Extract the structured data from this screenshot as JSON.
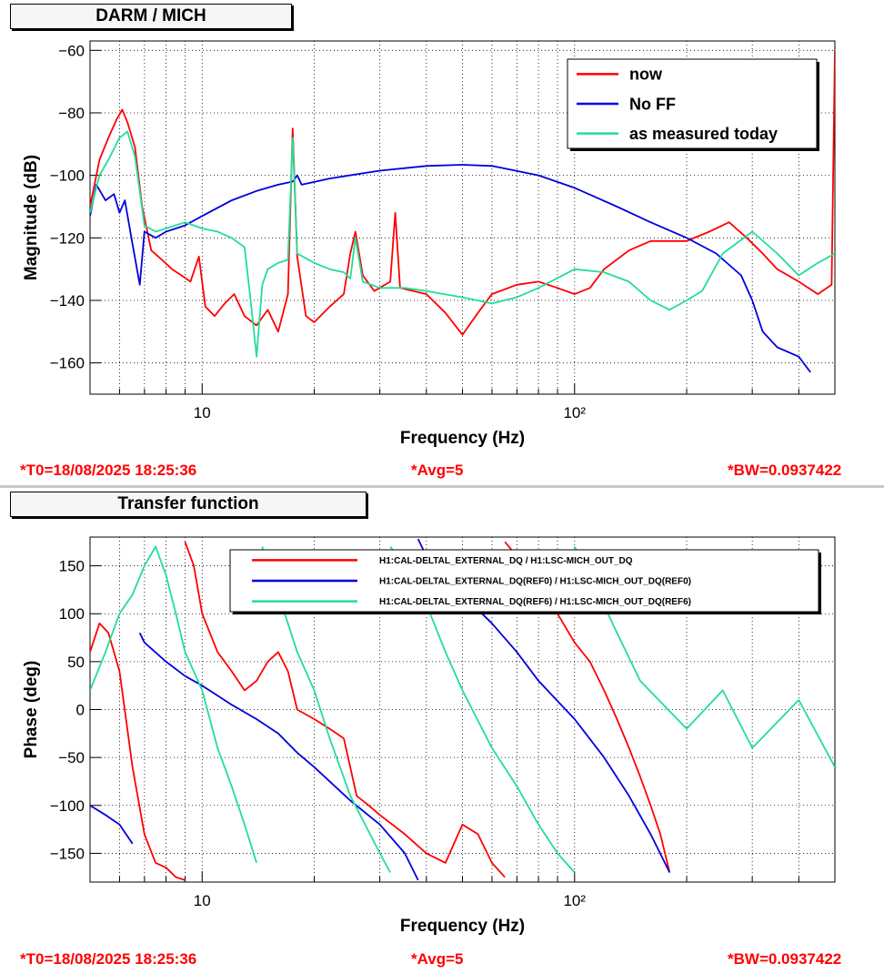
{
  "top": {
    "title": "DARM / MICH",
    "footer": {
      "t0": "*T0=18/08/2025 18:25:36",
      "avg": "*Avg=5",
      "bw": "*BW=0.0937422"
    }
  },
  "bottom": {
    "title": "Transfer function",
    "footer": {
      "t0": "*T0=18/08/2025 18:25:36",
      "avg": "*Avg=5",
      "bw": "*BW=0.0937422"
    }
  },
  "colors": {
    "red": "#ff0000",
    "blue": "#0000dd",
    "teal": "#22dd99"
  },
  "chart_data": [
    {
      "type": "line",
      "xlabel": "Frequency (Hz)",
      "ylabel": "Magnitude (dB)",
      "xscale": "log",
      "xlim": [
        5,
        500
      ],
      "ylim": [
        -170,
        -57
      ],
      "xticks": [
        10,
        100
      ],
      "xtick_labels": [
        "10",
        "10²"
      ],
      "yticks": [
        -60,
        -80,
        -100,
        -120,
        -140,
        -160
      ],
      "grid": true,
      "legend_position": "top-right",
      "series": [
        {
          "name": "now",
          "color": "#ff0000",
          "width": 1.8,
          "points": [
            [
              5,
              -110
            ],
            [
              5.3,
              -95
            ],
            [
              5.6,
              -88
            ],
            [
              5.9,
              -82
            ],
            [
              6.1,
              -79
            ],
            [
              6.3,
              -83
            ],
            [
              6.6,
              -91
            ],
            [
              6.9,
              -110
            ],
            [
              7.3,
              -124
            ],
            [
              7.8,
              -127
            ],
            [
              8.3,
              -130
            ],
            [
              8.8,
              -132
            ],
            [
              9.3,
              -134
            ],
            [
              9.8,
              -126
            ],
            [
              10.2,
              -142
            ],
            [
              10.8,
              -145
            ],
            [
              11.5,
              -141
            ],
            [
              12.2,
              -138
            ],
            [
              13,
              -145
            ],
            [
              14,
              -148
            ],
            [
              15,
              -143
            ],
            [
              16,
              -150
            ],
            [
              17,
              -138
            ],
            [
              17.5,
              -85
            ],
            [
              18,
              -126
            ],
            [
              19,
              -145
            ],
            [
              20,
              -147
            ],
            [
              22,
              -142
            ],
            [
              24,
              -138
            ],
            [
              25,
              -125
            ],
            [
              25.8,
              -118
            ],
            [
              27,
              -132
            ],
            [
              29,
              -137
            ],
            [
              32,
              -134
            ],
            [
              33,
              -112
            ],
            [
              34,
              -136
            ],
            [
              40,
              -138
            ],
            [
              45,
              -144
            ],
            [
              50,
              -151
            ],
            [
              55,
              -144
            ],
            [
              60,
              -138
            ],
            [
              70,
              -135
            ],
            [
              80,
              -134
            ],
            [
              90,
              -136
            ],
            [
              100,
              -138
            ],
            [
              110,
              -136
            ],
            [
              120,
              -130
            ],
            [
              140,
              -124
            ],
            [
              160,
              -121
            ],
            [
              180,
              -121
            ],
            [
              200,
              -121
            ],
            [
              230,
              -118
            ],
            [
              260,
              -115
            ],
            [
              290,
              -120
            ],
            [
              320,
              -125
            ],
            [
              350,
              -130
            ],
            [
              400,
              -134
            ],
            [
              450,
              -138
            ],
            [
              490,
              -135
            ],
            [
              500,
              -60
            ]
          ]
        },
        {
          "name": "No FF",
          "color": "#0000dd",
          "width": 1.8,
          "points": [
            [
              5,
              -113
            ],
            [
              5.2,
              -103
            ],
            [
              5.5,
              -108
            ],
            [
              5.8,
              -106
            ],
            [
              6,
              -112
            ],
            [
              6.2,
              -108
            ],
            [
              6.5,
              -122
            ],
            [
              6.8,
              -135
            ],
            [
              7,
              -118
            ],
            [
              7.5,
              -120
            ],
            [
              8,
              -118
            ],
            [
              9,
              -116
            ],
            [
              10,
              -113
            ],
            [
              12,
              -108
            ],
            [
              14,
              -105
            ],
            [
              16,
              -103
            ],
            [
              17.5,
              -102
            ],
            [
              18,
              -100
            ],
            [
              18.5,
              -103
            ],
            [
              22,
              -101
            ],
            [
              30,
              -98.5
            ],
            [
              40,
              -97
            ],
            [
              50,
              -96.6
            ],
            [
              60,
              -97
            ],
            [
              80,
              -100
            ],
            [
              100,
              -104
            ],
            [
              130,
              -110
            ],
            [
              160,
              -115
            ],
            [
              200,
              -120
            ],
            [
              240,
              -125
            ],
            [
              280,
              -132
            ],
            [
              300,
              -140
            ],
            [
              320,
              -150
            ],
            [
              350,
              -155
            ],
            [
              400,
              -158
            ],
            [
              430,
              -163
            ]
          ]
        },
        {
          "name": "as measured today",
          "color": "#22dd99",
          "width": 1.8,
          "points": [
            [
              5,
              -112
            ],
            [
              5.3,
              -100
            ],
            [
              5.6,
              -95
            ],
            [
              6,
              -88
            ],
            [
              6.3,
              -86
            ],
            [
              6.6,
              -94
            ],
            [
              7,
              -116
            ],
            [
              7.5,
              -118
            ],
            [
              8,
              -117
            ],
            [
              9,
              -115
            ],
            [
              10,
              -117
            ],
            [
              11,
              -118
            ],
            [
              12,
              -120
            ],
            [
              13,
              -123
            ],
            [
              13.5,
              -140
            ],
            [
              14,
              -158
            ],
            [
              14.5,
              -135
            ],
            [
              15,
              -130
            ],
            [
              16,
              -128
            ],
            [
              17,
              -127
            ],
            [
              17.5,
              -88
            ],
            [
              18,
              -125
            ],
            [
              20,
              -128
            ],
            [
              22,
              -130
            ],
            [
              24,
              -131
            ],
            [
              25,
              -133
            ],
            [
              25.8,
              -120
            ],
            [
              27,
              -134
            ],
            [
              30,
              -136
            ],
            [
              35,
              -136
            ],
            [
              40,
              -137
            ],
            [
              50,
              -139
            ],
            [
              60,
              -141
            ],
            [
              70,
              -139
            ],
            [
              80,
              -136
            ],
            [
              100,
              -130
            ],
            [
              120,
              -131
            ],
            [
              140,
              -134
            ],
            [
              160,
              -140
            ],
            [
              180,
              -143
            ],
            [
              200,
              -140
            ],
            [
              220,
              -137
            ],
            [
              250,
              -125
            ],
            [
              300,
              -118
            ],
            [
              350,
              -125
            ],
            [
              400,
              -132
            ],
            [
              450,
              -128
            ],
            [
              500,
              -125
            ]
          ]
        }
      ]
    },
    {
      "type": "line",
      "xlabel": "Frequency (Hz)",
      "ylabel": "Phase (deg)",
      "xscale": "log",
      "xlim": [
        5,
        500
      ],
      "ylim": [
        -180,
        180
      ],
      "xticks": [
        10,
        100
      ],
      "xtick_labels": [
        "10",
        "10²"
      ],
      "yticks": [
        150,
        100,
        50,
        0,
        -50,
        -100,
        -150
      ],
      "grid": true,
      "legend_position": "top",
      "series": [
        {
          "name": "H1:CAL-DELTAL_EXTERNAL_DQ / H1:LSC-MICH_OUT_DQ",
          "color": "#ff0000",
          "width": 1.8,
          "points": [
            [
              5,
              60
            ],
            [
              5.3,
              90
            ],
            [
              5.6,
              80
            ],
            [
              6,
              40
            ],
            [
              6.5,
              -60
            ],
            [
              7,
              -130
            ],
            [
              7.5,
              -160
            ],
            [
              8,
              -165
            ],
            [
              8.5,
              -175
            ],
            [
              9,
              -178
            ],
            [
              9,
              175
            ],
            [
              9.5,
              150
            ],
            [
              10,
              100
            ],
            [
              11,
              60
            ],
            [
              12,
              40
            ],
            [
              13,
              20
            ],
            [
              14,
              30
            ],
            [
              15,
              50
            ],
            [
              16,
              60
            ],
            [
              17,
              40
            ],
            [
              18,
              0
            ],
            [
              20,
              -10
            ],
            [
              22,
              -20
            ],
            [
              24,
              -30
            ],
            [
              26,
              -90
            ],
            [
              28,
              -100
            ],
            [
              30,
              -110
            ],
            [
              35,
              -130
            ],
            [
              40,
              -150
            ],
            [
              45,
              -160
            ],
            [
              50,
              -120
            ],
            [
              55,
              -130
            ],
            [
              60,
              -160
            ],
            [
              65,
              -175
            ],
            [
              65,
              175
            ],
            [
              70,
              160
            ],
            [
              80,
              120
            ],
            [
              90,
              100
            ],
            [
              100,
              70
            ],
            [
              110,
              50
            ],
            [
              120,
              20
            ],
            [
              130,
              -10
            ],
            [
              140,
              -40
            ],
            [
              150,
              -70
            ],
            [
              160,
              -100
            ],
            [
              170,
              -130
            ],
            [
              180,
              -170
            ]
          ]
        },
        {
          "name": "H1:CAL-DELTAL_EXTERNAL_DQ(REF0) / H1:LSC-MICH_OUT_DQ(REF0)",
          "color": "#0000dd",
          "width": 1.8,
          "points": [
            [
              5,
              -100
            ],
            [
              5.5,
              -110
            ],
            [
              6,
              -120
            ],
            [
              6.5,
              -140
            ],
            [
              6.8,
              80
            ],
            [
              7,
              70
            ],
            [
              8,
              50
            ],
            [
              9,
              35
            ],
            [
              10,
              25
            ],
            [
              12,
              5
            ],
            [
              14,
              -10
            ],
            [
              16,
              -25
            ],
            [
              18,
              -45
            ],
            [
              20,
              -60
            ],
            [
              25,
              -95
            ],
            [
              30,
              -120
            ],
            [
              35,
              -150
            ],
            [
              38,
              -178
            ],
            [
              38,
              178
            ],
            [
              40,
              160
            ],
            [
              50,
              120
            ],
            [
              60,
              90
            ],
            [
              70,
              60
            ],
            [
              80,
              30
            ],
            [
              100,
              -10
            ],
            [
              120,
              -50
            ],
            [
              140,
              -90
            ],
            [
              160,
              -130
            ],
            [
              180,
              -170
            ]
          ]
        },
        {
          "name": "H1:CAL-DELTAL_EXTERNAL_DQ(REF6) / H1:LSC-MICH_OUT_DQ(REF6)",
          "color": "#22dd99",
          "width": 1.8,
          "points": [
            [
              5,
              20
            ],
            [
              5.5,
              60
            ],
            [
              6,
              100
            ],
            [
              6.5,
              120
            ],
            [
              7,
              150
            ],
            [
              7.5,
              170
            ],
            [
              8,
              140
            ],
            [
              8.5,
              100
            ],
            [
              9,
              60
            ],
            [
              10,
              20
            ],
            [
              11,
              -40
            ],
            [
              12,
              -80
            ],
            [
              13,
              -120
            ],
            [
              14,
              -160
            ],
            [
              14.5,
              170
            ],
            [
              15,
              150
            ],
            [
              16,
              120
            ],
            [
              17,
              90
            ],
            [
              18,
              60
            ],
            [
              20,
              20
            ],
            [
              22,
              -30
            ],
            [
              25,
              -90
            ],
            [
              30,
              -150
            ],
            [
              32,
              -170
            ],
            [
              32,
              170
            ],
            [
              35,
              150
            ],
            [
              40,
              110
            ],
            [
              45,
              60
            ],
            [
              50,
              20
            ],
            [
              60,
              -40
            ],
            [
              70,
              -80
            ],
            [
              80,
              -120
            ],
            [
              90,
              -150
            ],
            [
              100,
              -170
            ],
            [
              100,
              170
            ],
            [
              110,
              140
            ],
            [
              130,
              80
            ],
            [
              150,
              30
            ],
            [
              200,
              -20
            ],
            [
              250,
              20
            ],
            [
              300,
              -40
            ],
            [
              400,
              10
            ],
            [
              500,
              -60
            ]
          ]
        }
      ]
    }
  ]
}
